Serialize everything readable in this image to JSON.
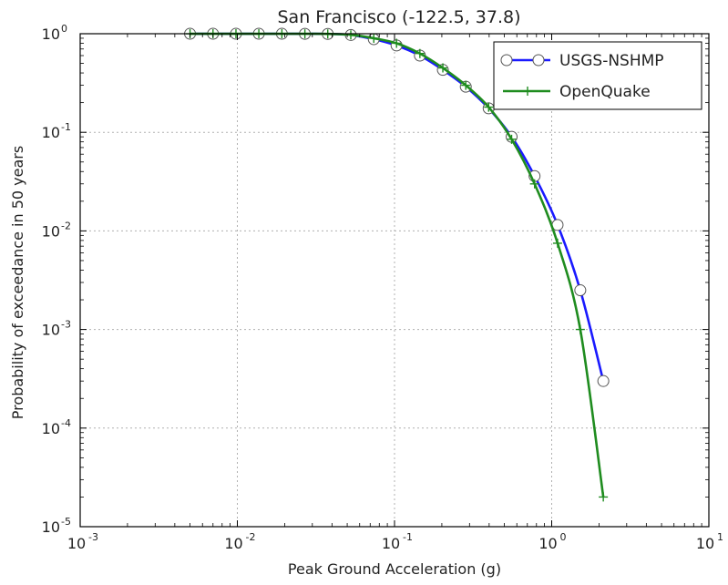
{
  "chart_data": {
    "type": "line",
    "title": "San Francisco (-122.5, 37.8)",
    "xlabel": "Peak Ground Acceleration (g)",
    "ylabel": "Probability of exceedance in 50 years",
    "xscale": "log",
    "yscale": "log",
    "xlim": [
      0.001,
      10
    ],
    "ylim": [
      1e-05,
      1
    ],
    "grid": true,
    "legend_position": "top-right",
    "x_ticks": [
      {
        "value": 0.001,
        "base": "10",
        "exp": "-3"
      },
      {
        "value": 0.01,
        "base": "10",
        "exp": "-2"
      },
      {
        "value": 0.1,
        "base": "10",
        "exp": "-1"
      },
      {
        "value": 1,
        "base": "10",
        "exp": "0"
      },
      {
        "value": 10,
        "base": "10",
        "exp": "1"
      }
    ],
    "y_ticks": [
      {
        "value": 1,
        "base": "10",
        "exp": "0"
      },
      {
        "value": 0.1,
        "base": "10",
        "exp": "-1"
      },
      {
        "value": 0.01,
        "base": "10",
        "exp": "-2"
      },
      {
        "value": 0.001,
        "base": "10",
        "exp": "-3"
      },
      {
        "value": 0.0001,
        "base": "10",
        "exp": "-4"
      },
      {
        "value": 1e-05,
        "base": "10",
        "exp": "-5"
      }
    ],
    "series": [
      {
        "name": "USGS-NSHMP",
        "color": "#1a1aff",
        "marker": "circle",
        "x": [
          0.005,
          0.007,
          0.0098,
          0.0137,
          0.0192,
          0.0269,
          0.0376,
          0.0527,
          0.0738,
          0.103,
          0.145,
          0.203,
          0.284,
          0.397,
          0.556,
          0.778,
          1.09,
          1.52,
          2.13
        ],
        "y": [
          0.999,
          0.999,
          0.999,
          0.999,
          0.999,
          0.998,
          0.995,
          0.97,
          0.88,
          0.76,
          0.6,
          0.43,
          0.29,
          0.175,
          0.09,
          0.036,
          0.0115,
          0.0025,
          0.0003
        ]
      },
      {
        "name": "OpenQuake",
        "color": "#1f8c1f",
        "marker": "plus",
        "x": [
          0.005,
          0.007,
          0.0098,
          0.0137,
          0.0192,
          0.0269,
          0.0376,
          0.0527,
          0.0738,
          0.103,
          0.145,
          0.203,
          0.284,
          0.397,
          0.556,
          0.778,
          1.09,
          1.52,
          2.13
        ],
        "y": [
          0.999,
          0.999,
          0.999,
          0.999,
          0.999,
          0.998,
          0.996,
          0.975,
          0.9,
          0.8,
          0.63,
          0.45,
          0.3,
          0.18,
          0.085,
          0.03,
          0.0075,
          0.001,
          2e-05
        ]
      }
    ]
  },
  "colors": {
    "axes": "#000000",
    "grid": "#b0b0b0",
    "background": "#ffffff"
  }
}
